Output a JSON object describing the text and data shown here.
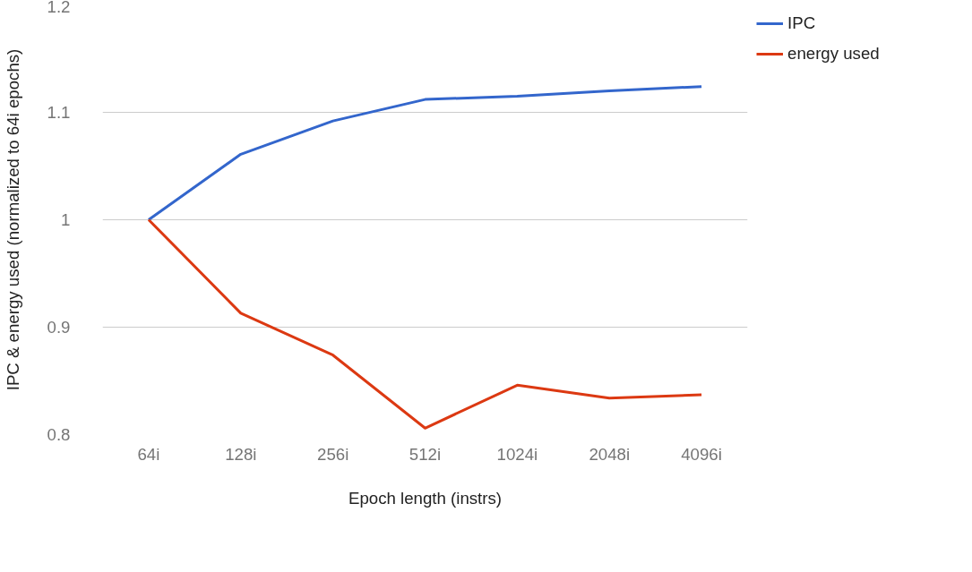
{
  "chart_data": {
    "type": "line",
    "xlabel": "Epoch length (instrs)",
    "ylabel": "IPC & energy used (normalized to 64i epochs)",
    "categories": [
      "64i",
      "128i",
      "256i",
      "512i",
      "1024i",
      "2048i",
      "4096i"
    ],
    "series": [
      {
        "name": "IPC",
        "color": "#3366cc",
        "values": [
          1.0,
          1.061,
          1.092,
          1.112,
          1.115,
          1.12,
          1.124
        ]
      },
      {
        "name": "energy used",
        "color": "#dc3912",
        "values": [
          1.0,
          0.913,
          0.874,
          0.806,
          0.846,
          0.834,
          0.837
        ]
      }
    ],
    "ylim": [
      0.8,
      1.2
    ],
    "yticks": [
      0.8,
      0.9,
      1,
      1.1,
      1.2
    ],
    "grid": "y",
    "legend": "top right",
    "marker": "none",
    "line_style": "solid"
  }
}
